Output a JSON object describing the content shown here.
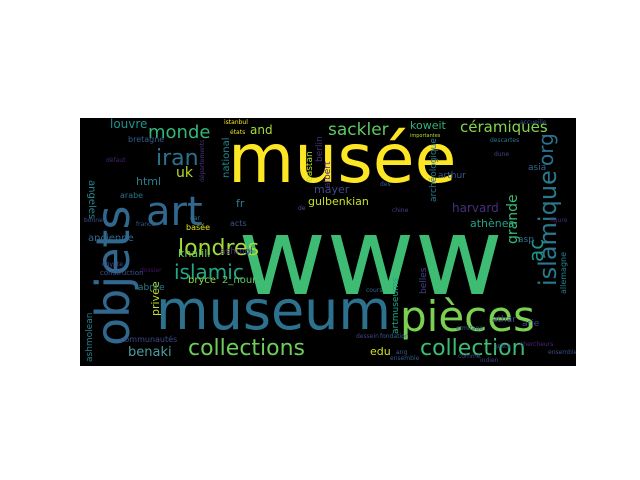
{
  "background": "#000000",
  "words": [
    {
      "text": "www",
      "color": "#3fbc73"
    },
    {
      "text": "musée",
      "color": "#fde725"
    },
    {
      "text": "museum",
      "color": "#2c728e"
    },
    {
      "text": "objets",
      "color": "#31688e"
    },
    {
      "text": "pièces",
      "color": "#7ad151"
    },
    {
      "text": "art",
      "color": "#31688e"
    },
    {
      "text": "collections",
      "color": "#6ccd5a"
    },
    {
      "text": "collection",
      "color": "#3dbc74"
    },
    {
      "text": "islamique",
      "color": "#2a788e"
    },
    {
      "text": "londres",
      "color": "#a2da37"
    },
    {
      "text": "islamic",
      "color": "#22a884"
    },
    {
      "text": "iran",
      "color": "#2c728e"
    },
    {
      "text": "monde",
      "color": "#35b779"
    },
    {
      "text": "sackler",
      "color": "#5ec962"
    },
    {
      "text": "céramiques",
      "color": "#84d44b"
    },
    {
      "text": "org",
      "color": "#2c728e"
    },
    {
      "text": "ac",
      "color": "#1f948c"
    },
    {
      "text": "uk",
      "color": "#b8de29"
    },
    {
      "text": "grande",
      "color": "#3bbb75"
    },
    {
      "text": "benaki",
      "color": "#4d9aa0"
    },
    {
      "text": "edu",
      "color": "#d2e21b"
    },
    {
      "text": "and",
      "color": "#a5db36"
    },
    {
      "text": "koweit",
      "color": "#2fb47c"
    },
    {
      "text": "louvre",
      "color": "#20928c"
    },
    {
      "text": "gulbenkian",
      "color": "#c8e020"
    },
    {
      "text": "harvard",
      "color": "#472f7d"
    },
    {
      "text": "athènes",
      "color": "#20a386"
    },
    {
      "text": "html",
      "color": "#277f8e"
    },
    {
      "text": "fr",
      "color": "#277f8e"
    },
    {
      "text": "mayer",
      "color": "#3f4889"
    },
    {
      "text": "national",
      "color": "#25858e"
    },
    {
      "text": "khalili",
      "color": "#6ccd5a"
    },
    {
      "text": "ashmol",
      "color": "#482979"
    },
    {
      "text": "bryce",
      "color": "#8ed645"
    },
    {
      "text": "2_nour",
      "color": "#5ec962"
    },
    {
      "text": "privée",
      "color": "#c2df23"
    },
    {
      "text": "angeles",
      "color": "#25858e"
    },
    {
      "text": "ancienne",
      "color": "#31688e"
    },
    {
      "text": "arthur",
      "color": "#38598c"
    },
    {
      "text": "asia",
      "color": "#31688e"
    },
    {
      "text": "athar",
      "color": "#3e4a89"
    },
    {
      "text": "asp",
      "color": "#2d718e"
    },
    {
      "text": "belles",
      "color": "#424086"
    },
    {
      "text": "arie",
      "color": "#404688"
    },
    {
      "text": "allemagne",
      "color": "#26828e"
    },
    {
      "text": "artmuseums",
      "color": "#20a486"
    },
    {
      "text": "archéologique",
      "color": "#29798e"
    },
    {
      "text": "bastan",
      "color": "#bddf26"
    },
    {
      "text": "albert",
      "color": "#482576"
    },
    {
      "text": "berlin",
      "color": "#46327e"
    },
    {
      "text": "ashmolean",
      "color": "#277f8e"
    },
    {
      "text": "abrite",
      "color": "#277f8e"
    },
    {
      "text": "communautés",
      "color": "#3e4989"
    },
    {
      "text": "basée",
      "color": "#e5e419"
    },
    {
      "text": "bretagne",
      "color": "#365c8d"
    },
    {
      "text": "arabe",
      "color": "#2d708e"
    },
    {
      "text": "construction",
      "color": "#3b528b"
    },
    {
      "text": "acts",
      "color": "#3a538b"
    },
    {
      "text": "états",
      "color": "#e7e419"
    },
    {
      "text": "départements",
      "color": "#46327e"
    },
    {
      "text": "dune",
      "color": "#3f4788"
    },
    {
      "text": "comme",
      "color": "#404588"
    },
    {
      "text": "cours",
      "color": "#2f6b8e"
    },
    {
      "text": "égypte",
      "color": "#3d4e8a"
    },
    {
      "text": "france",
      "color": "#375a8c"
    },
    {
      "text": "dossier",
      "color": "#471365"
    },
    {
      "text": "fondation",
      "color": "#34618d"
    },
    {
      "text": "ermitage",
      "color": "#33638d"
    },
    {
      "text": "istanbul",
      "color": "#fde725"
    },
    {
      "text": "accueille",
      "color": "#3b528b"
    },
    {
      "text": "ensemble",
      "color": "#38588c"
    },
    {
      "text": "descartes",
      "color": "#2a768e"
    },
    {
      "text": "indien",
      "color": "#424186"
    },
    {
      "text": "importantes",
      "color": "#b5de2b"
    },
    {
      "text": "figure",
      "color": "#472a7a"
    },
    {
      "text": "grâce",
      "color": "#3b518b"
    },
    {
      "text": "dessein",
      "color": "#414487"
    },
    {
      "text": "dar",
      "color": "#2c738e"
    },
    {
      "text": "bonne",
      "color": "#3e4c8a"
    },
    {
      "text": "défaut",
      "color": "#482475"
    },
    {
      "text": "chine",
      "color": "#424186"
    },
    {
      "text": "ensemble",
      "color": "#3e4a89"
    },
    {
      "text": "chercheurs",
      "color": "#482878"
    },
    {
      "text": "ang",
      "color": "#375b8d"
    },
    {
      "text": "entier",
      "color": "#471063"
    },
    {
      "text": "de",
      "color": "#3b528b"
    },
    {
      "text": "des",
      "color": "#39558c"
    }
  ]
}
